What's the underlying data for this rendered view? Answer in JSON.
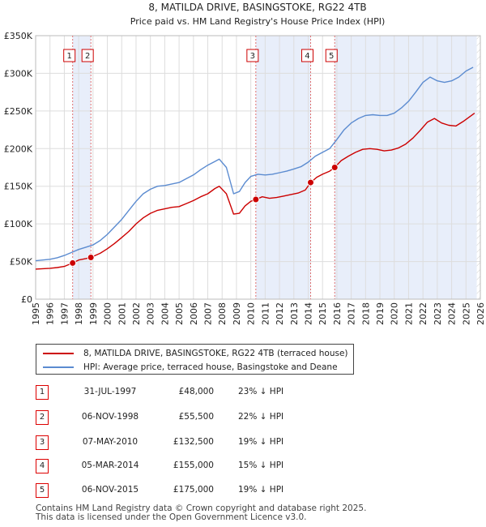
{
  "chart_data": {
    "type": "line",
    "title": "8, MATILDA DRIVE, BASINGSTOKE, RG22 4TB",
    "subtitle": "Price paid vs. HM Land Registry's House Price Index (HPI)",
    "xlabel": "",
    "ylabel": "",
    "xlim": [
      1995,
      2026
    ],
    "ylim": [
      0,
      350000
    ],
    "y_ticks": [
      0,
      50000,
      100000,
      150000,
      200000,
      250000,
      300000,
      350000
    ],
    "y_tick_labels": [
      "£0",
      "£50K",
      "£100K",
      "£150K",
      "£200K",
      "£250K",
      "£300K",
      "£350K"
    ],
    "x_tick_labels": [
      "1995",
      "1996",
      "1997",
      "1998",
      "1999",
      "2000",
      "2001",
      "2002",
      "2003",
      "2004",
      "2005",
      "2006",
      "2007",
      "2008",
      "2009",
      "2010",
      "2011",
      "2012",
      "2013",
      "2014",
      "2015",
      "2016",
      "2017",
      "2018",
      "2019",
      "2020",
      "2021",
      "2022",
      "2023",
      "2024",
      "2025",
      "2026"
    ],
    "grid": true,
    "series": [
      {
        "name": "8, MATILDA DRIVE, BASINGSTOKE, RG22 4TB (terraced house)",
        "color": "#cc0000",
        "x": [
          1995.0,
          1995.5,
          1996.0,
          1996.5,
          1997.0,
          1997.58,
          1998.0,
          1998.5,
          1998.85,
          1999.5,
          2000.0,
          2000.5,
          2001.0,
          2001.5,
          2002.0,
          2002.5,
          2003.0,
          2003.5,
          2004.0,
          2004.5,
          2005.0,
          2005.5,
          2006.0,
          2006.5,
          2007.0,
          2007.5,
          2007.8,
          2008.3,
          2008.8,
          2009.2,
          2009.6,
          2010.0,
          2010.35,
          2010.8,
          2011.3,
          2011.8,
          2012.3,
          2012.8,
          2013.3,
          2013.8,
          2014.17,
          2014.6,
          2015.0,
          2015.5,
          2015.85,
          2016.3,
          2016.8,
          2017.3,
          2017.8,
          2018.3,
          2018.8,
          2019.3,
          2019.8,
          2020.3,
          2020.8,
          2021.3,
          2021.8,
          2022.3,
          2022.8,
          2023.3,
          2023.8,
          2024.3,
          2024.8,
          2025.3,
          2025.6
        ],
        "y": [
          40000,
          40500,
          41000,
          42000,
          43500,
          48000,
          52000,
          54000,
          55500,
          61000,
          67000,
          74000,
          82000,
          90000,
          100000,
          108000,
          114000,
          118000,
          120000,
          122000,
          123000,
          127000,
          131000,
          136000,
          140000,
          147000,
          150000,
          140000,
          113000,
          114000,
          124000,
          130000,
          132500,
          136000,
          134000,
          135000,
          137000,
          139000,
          141000,
          145000,
          155000,
          162000,
          166000,
          170000,
          175000,
          184000,
          190000,
          195000,
          199000,
          200000,
          199000,
          197000,
          198000,
          201000,
          206000,
          214000,
          224000,
          235000,
          240000,
          234000,
          231000,
          230000,
          236000,
          243000,
          247000
        ]
      },
      {
        "name": "HPI: Average price, terraced house, Basingstoke and Deane",
        "color": "#5b8bd0",
        "x": [
          1995.0,
          1995.5,
          1996.0,
          1996.5,
          1997.0,
          1997.5,
          1998.0,
          1998.5,
          1999.0,
          1999.5,
          2000.0,
          2000.5,
          2001.0,
          2001.5,
          2002.0,
          2002.5,
          2003.0,
          2003.5,
          2004.0,
          2004.5,
          2005.0,
          2005.5,
          2006.0,
          2006.5,
          2007.0,
          2007.5,
          2007.8,
          2008.3,
          2008.8,
          2009.2,
          2009.6,
          2010.0,
          2010.5,
          2011.0,
          2011.5,
          2012.0,
          2012.5,
          2013.0,
          2013.5,
          2014.0,
          2014.5,
          2015.0,
          2015.5,
          2016.0,
          2016.5,
          2017.0,
          2017.5,
          2018.0,
          2018.5,
          2019.0,
          2019.5,
          2020.0,
          2020.5,
          2021.0,
          2021.5,
          2022.0,
          2022.5,
          2023.0,
          2023.5,
          2024.0,
          2024.5,
          2025.0,
          2025.5
        ],
        "y": [
          51000,
          52000,
          53000,
          55000,
          58000,
          62000,
          66000,
          69000,
          72000,
          78000,
          86000,
          96000,
          106000,
          118000,
          130000,
          140000,
          146000,
          150000,
          151000,
          153000,
          155000,
          160000,
          165000,
          172000,
          178000,
          183000,
          186000,
          175000,
          140000,
          143000,
          155000,
          163000,
          166000,
          165000,
          166000,
          168000,
          170000,
          173000,
          176000,
          182000,
          190000,
          195000,
          200000,
          212000,
          225000,
          234000,
          240000,
          244000,
          245000,
          244000,
          244000,
          247000,
          254000,
          263000,
          275000,
          288000,
          295000,
          290000,
          288000,
          290000,
          295000,
          303000,
          308000
        ]
      }
    ],
    "sales": [
      {
        "n": "1",
        "x": 1997.58,
        "y": 48000
      },
      {
        "n": "2",
        "x": 1998.85,
        "y": 55500
      },
      {
        "n": "3",
        "x": 2010.35,
        "y": 132500
      },
      {
        "n": "4",
        "x": 2014.17,
        "y": 155000
      },
      {
        "n": "5",
        "x": 2015.85,
        "y": 175000
      }
    ]
  },
  "legend": [
    {
      "label": "8, MATILDA DRIVE, BASINGSTOKE, RG22 4TB (terraced house)",
      "color": "#cc0000"
    },
    {
      "label": "HPI: Average price, terraced house, Basingstoke and Deane",
      "color": "#5b8bd0"
    }
  ],
  "table": [
    {
      "n": "1",
      "date": "31-JUL-1997",
      "price": "£48,000",
      "hpi": "23% ↓ HPI"
    },
    {
      "n": "2",
      "date": "06-NOV-1998",
      "price": "£55,500",
      "hpi": "22% ↓ HPI"
    },
    {
      "n": "3",
      "date": "07-MAY-2010",
      "price": "£132,500",
      "hpi": "19% ↓ HPI"
    },
    {
      "n": "4",
      "date": "05-MAR-2014",
      "price": "£155,000",
      "hpi": "15% ↓ HPI"
    },
    {
      "n": "5",
      "date": "06-NOV-2015",
      "price": "£175,000",
      "hpi": "19% ↓ HPI"
    }
  ],
  "footer": {
    "line1": "Contains HM Land Registry data © Crown copyright and database right 2025.",
    "line2": "This data is licensed under the Open Government Licence v3.0."
  }
}
